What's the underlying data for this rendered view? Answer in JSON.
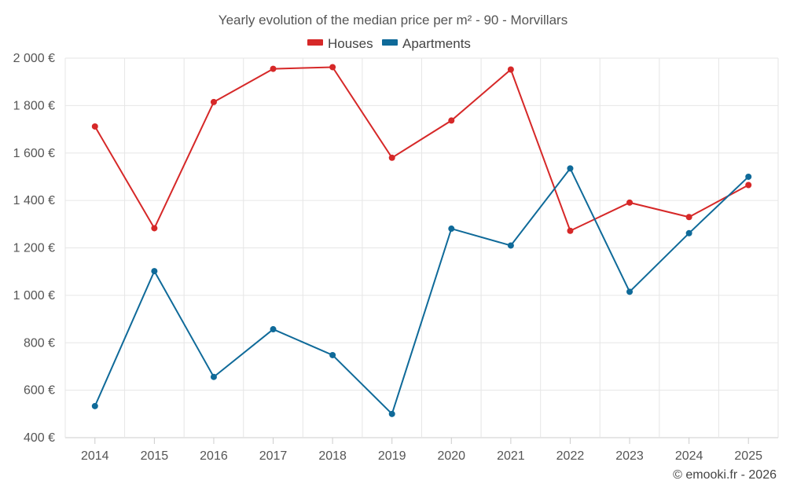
{
  "chart_data": {
    "type": "line",
    "title": "Yearly evolution of the median price per m² - 90 - Morvillars",
    "x": [
      "2014",
      "2015",
      "2016",
      "2017",
      "2018",
      "2019",
      "2020",
      "2021",
      "2022",
      "2023",
      "2024",
      "2025"
    ],
    "ylim": [
      400,
      2000
    ],
    "yticks": [
      400,
      600,
      800,
      1000,
      1200,
      1400,
      1600,
      1800,
      2000
    ],
    "ytick_labels": [
      "400 €",
      "600 €",
      "800 €",
      "1 000 €",
      "1 200 €",
      "1 400 €",
      "1 600 €",
      "1 800 €",
      "2 000 €"
    ],
    "grid": true,
    "legend_position": "top-center",
    "series": [
      {
        "name": "Houses",
        "color": "#d62828",
        "values": [
          1712,
          1283,
          1815,
          1955,
          1962,
          1580,
          1737,
          1952,
          1272,
          1391,
          1330,
          1465
        ]
      },
      {
        "name": "Apartments",
        "color": "#0f6a99",
        "values": [
          533,
          1102,
          656,
          857,
          748,
          500,
          1281,
          1210,
          1535,
          1015,
          1262,
          1500
        ]
      }
    ]
  },
  "credit": "© emooki.fr - 2026"
}
